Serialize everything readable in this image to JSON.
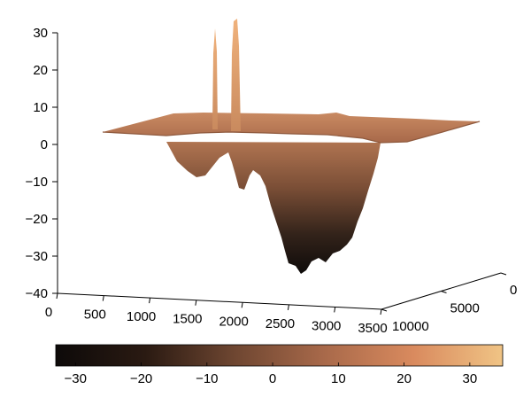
{
  "chart_data": {
    "type": "surface",
    "title": "",
    "xlabel": "",
    "ylabel": "",
    "zlabel": "",
    "colormap": "copper",
    "colormap_stops": [
      "#0d0a09",
      "#2a1a12",
      "#6e4631",
      "#a8694a",
      "#d98a5e",
      "#f0c485"
    ],
    "x_ticks": [
      "0",
      "500",
      "1000",
      "1500",
      "2000",
      "2500",
      "3000",
      "3500"
    ],
    "y_ticks": [
      "0",
      "5000",
      "10000"
    ],
    "z_ticks": [
      "30",
      "20",
      "10",
      "0",
      "−10",
      "−20",
      "−30",
      "−40"
    ],
    "colorbar_ticks": [
      "−30",
      "−20",
      "−10",
      "0",
      "10",
      "20",
      "30"
    ],
    "xlim": [
      0,
      3500
    ],
    "ylim": [
      0,
      10000
    ],
    "zlim": [
      -40,
      30
    ],
    "clim": [
      -33,
      35
    ],
    "plateau_level": 5,
    "features": [
      {
        "kind": "spike",
        "x": 820,
        "z": 32
      },
      {
        "kind": "spike",
        "x": 1010,
        "z": 34
      },
      {
        "kind": "trough",
        "x_range": [
          900,
          2600
        ],
        "min_z": -35
      }
    ]
  }
}
